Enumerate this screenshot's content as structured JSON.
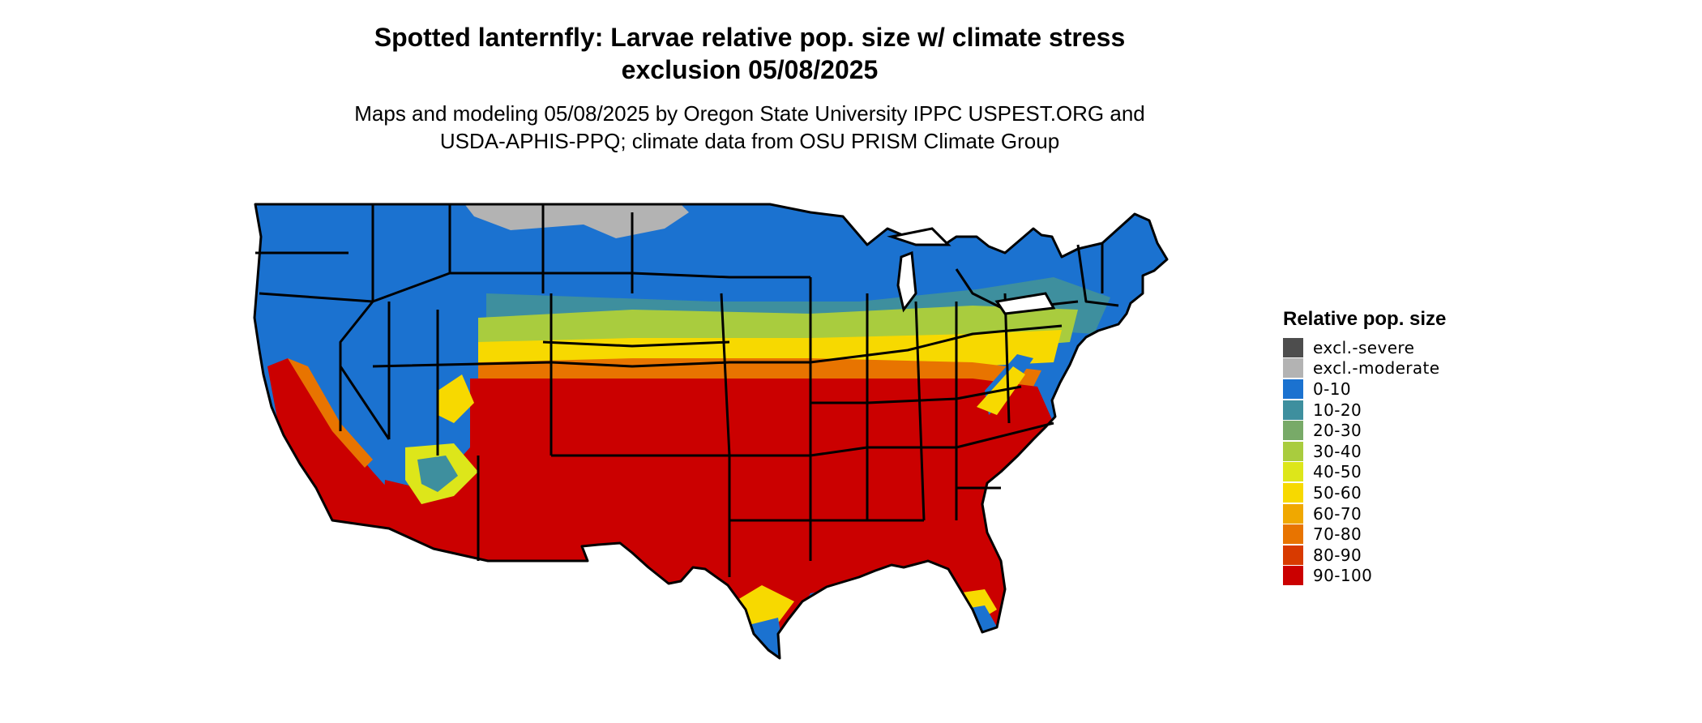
{
  "title": {
    "line1": "Spotted lanternfly: Larvae relative pop. size w/ climate stress",
    "line2": "exclusion 05/08/2025"
  },
  "subtitle": {
    "line1": "Maps and modeling 05/08/2025 by Oregon State University IPPC USPEST.ORG and",
    "line2": "USDA-APHIS-PPQ; climate data from OSU PRISM Climate Group"
  },
  "legend": {
    "title": "Relative pop. size",
    "items": [
      {
        "label": "excl.-severe",
        "color": "#4d4d4d"
      },
      {
        "label": "excl.-moderate",
        "color": "#b3b3b3"
      },
      {
        "label": "0-10",
        "color": "#1b72d0"
      },
      {
        "label": "10-20",
        "color": "#3e8f9e"
      },
      {
        "label": "20-30",
        "color": "#78aa68"
      },
      {
        "label": "30-40",
        "color": "#a9cc3e"
      },
      {
        "label": "40-50",
        "color": "#dde61a"
      },
      {
        "label": "50-60",
        "color": "#f7d900"
      },
      {
        "label": "60-70",
        "color": "#f0a800"
      },
      {
        "label": "70-80",
        "color": "#e87400"
      },
      {
        "label": "80-90",
        "color": "#d83a00"
      },
      {
        "label": "90-100",
        "color": "#cb0000"
      }
    ]
  },
  "map": {
    "region": "Contiguous United States",
    "colors": {
      "blue": "#1b72d0",
      "teal": "#3e8f9e",
      "green": "#78aa68",
      "lime": "#a9cc3e",
      "yellow": "#f7d900",
      "orange": "#e87400",
      "red": "#cb0000",
      "gray": "#b3b3b3"
    }
  }
}
